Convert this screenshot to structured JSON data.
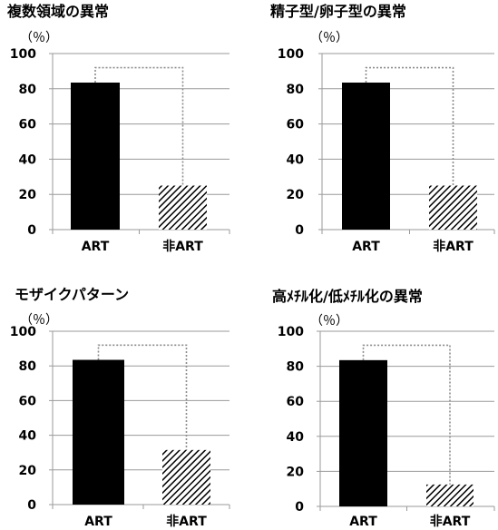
{
  "chart_data": [
    {
      "type": "bar",
      "title": "複数領域の異常",
      "unit": "（％）",
      "categories": [
        "ART",
        "非ART"
      ],
      "values": [
        83.5,
        25
      ],
      "ylim": [
        0,
        100
      ],
      "yticks": [
        0,
        20,
        40,
        60,
        80,
        100
      ],
      "grid": true,
      "bar_styles": [
        "solid",
        "hatched"
      ],
      "bracket_y": 92,
      "colors": {
        "bar": "#000000",
        "grid": "#9a9a9a",
        "bracket": "#8c8c8c"
      }
    },
    {
      "type": "bar",
      "title": "精子型/卵子型の異常",
      "unit": "（％）",
      "categories": [
        "ART",
        "非ART"
      ],
      "values": [
        83.5,
        25
      ],
      "ylim": [
        0,
        100
      ],
      "yticks": [
        0,
        20,
        40,
        60,
        80,
        100
      ],
      "grid": true,
      "bar_styles": [
        "solid",
        "hatched"
      ],
      "bracket_y": 92,
      "colors": {
        "bar": "#000000",
        "grid": "#9a9a9a",
        "bracket": "#8c8c8c"
      }
    },
    {
      "type": "bar",
      "title": "モザイクパターン",
      "unit": "（％）",
      "categories": [
        "ART",
        "非ART"
      ],
      "values": [
        83.5,
        31.5
      ],
      "ylim": [
        0,
        100
      ],
      "yticks": [
        0,
        20,
        40,
        60,
        80,
        100
      ],
      "grid": true,
      "bar_styles": [
        "solid",
        "hatched"
      ],
      "bracket_y": 92,
      "colors": {
        "bar": "#000000",
        "grid": "#9a9a9a",
        "bracket": "#8c8c8c"
      }
    },
    {
      "type": "bar",
      "title": "高ﾒﾁﾙ化/低ﾒﾁﾙ化の異常",
      "unit": "（％）",
      "categories": [
        "ART",
        "非ART"
      ],
      "values": [
        83.5,
        12.5
      ],
      "ylim": [
        0,
        100
      ],
      "yticks": [
        0,
        20,
        40,
        60,
        80,
        100
      ],
      "grid": true,
      "bar_styles": [
        "solid",
        "hatched"
      ],
      "bracket_y": 92,
      "colors": {
        "bar": "#000000",
        "grid": "#9a9a9a",
        "bracket": "#8c8c8c"
      }
    }
  ]
}
